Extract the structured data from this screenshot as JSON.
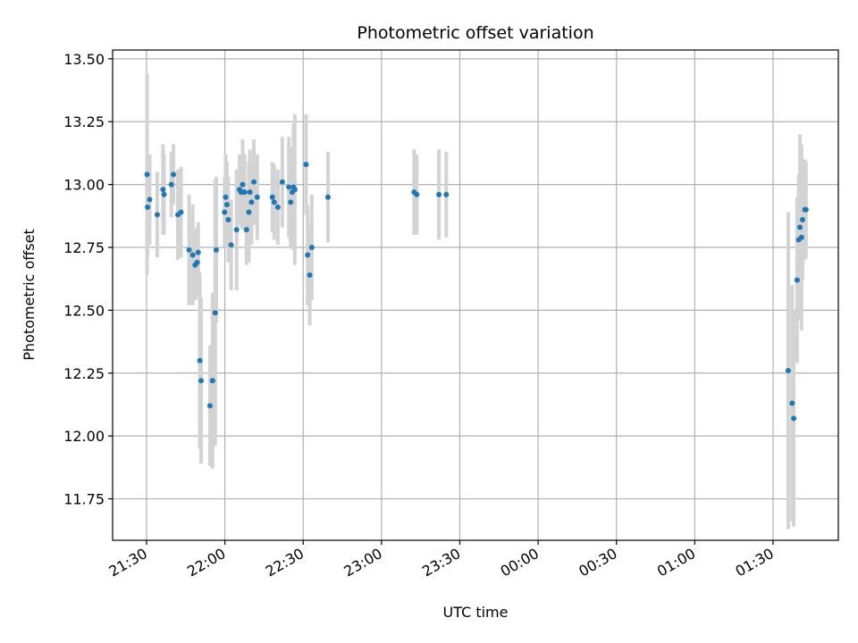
{
  "chart_data": {
    "type": "scatter",
    "title": "Photometric offset variation",
    "xlabel": "UTC time",
    "ylabel": "Photometric offset",
    "x_axis_type": "time",
    "x_start": "21:30",
    "x_tick_labels": [
      "21:30",
      "22:00",
      "22:30",
      "23:00",
      "23:30",
      "00:00",
      "00:30",
      "01:00",
      "01:30"
    ],
    "y_tick_labels": [
      "11.75",
      "12.00",
      "12.25",
      "12.50",
      "12.75",
      "13.00",
      "13.25",
      "13.50"
    ],
    "xlim_minutes_after_start": [
      -13,
      265
    ],
    "ylim": [
      11.585,
      13.535
    ],
    "grid": true,
    "legend": "none",
    "colors": {
      "point": "#1f77b4",
      "errorbar": "#d3d3d3",
      "grid": "#b0b0b0"
    },
    "series": [
      {
        "x_minutes_after_start": [
          0.2,
          0.4,
          1.2,
          4.1,
          6.3,
          6.7,
          9.5,
          10.3,
          12.0,
          13.2,
          16.3,
          17.7,
          18.6,
          19.4,
          19.8,
          20.4,
          20.9,
          24.3,
          25.3,
          26.3,
          26.7,
          29.9,
          30.3,
          30.8,
          31.3,
          32.4,
          34.5,
          35.6,
          36.2,
          36.8,
          37.2,
          37.6,
          38.3,
          39.2,
          39.6,
          40.2,
          41.1,
          42.4,
          48.2,
          48.9,
          50.3,
          52.0,
          54.5,
          55.2,
          55.8,
          56.3,
          56.8,
          61.1,
          61.7,
          62.5,
          63.3,
          69.5,
          102.5,
          103.5,
          112.0,
          114.8,
          245.8,
          247.3,
          247.9,
          249.2,
          249.8,
          250.3,
          250.9,
          251.3,
          252.2,
          252.6
        ],
        "y": [
          13.04,
          12.91,
          12.94,
          12.88,
          12.98,
          12.96,
          13.0,
          13.04,
          12.88,
          12.89,
          12.74,
          12.72,
          12.68,
          12.69,
          12.73,
          12.3,
          12.22,
          12.12,
          12.22,
          12.49,
          12.74,
          12.89,
          12.95,
          12.92,
          12.86,
          12.76,
          12.82,
          12.98,
          12.97,
          13.0,
          12.97,
          12.97,
          12.82,
          12.89,
          12.97,
          12.93,
          13.01,
          12.95,
          12.95,
          12.93,
          12.91,
          13.01,
          12.99,
          12.93,
          12.97,
          12.99,
          12.98,
          13.08,
          12.72,
          12.64,
          12.75,
          12.95,
          12.97,
          12.96,
          12.96,
          12.96,
          12.26,
          12.13,
          12.07,
          12.62,
          12.78,
          12.83,
          12.79,
          12.86,
          12.9,
          12.9
        ],
        "error": [
          0.4,
          0.2,
          0.18,
          0.17,
          0.18,
          0.16,
          0.13,
          0.12,
          0.18,
          0.18,
          0.22,
          0.2,
          0.14,
          0.14,
          0.12,
          0.35,
          0.33,
          0.24,
          0.35,
          0.53,
          0.29,
          0.14,
          0.17,
          0.17,
          0.17,
          0.18,
          0.24,
          0.14,
          0.14,
          0.18,
          0.14,
          0.15,
          0.14,
          0.2,
          0.17,
          0.17,
          0.17,
          0.17,
          0.14,
          0.15,
          0.15,
          0.18,
          0.2,
          0.18,
          0.18,
          0.25,
          0.3,
          0.2,
          0.2,
          0.2,
          0.21,
          0.18,
          0.17,
          0.16,
          0.18,
          0.17,
          0.63,
          0.47,
          0.43,
          0.33,
          0.26,
          0.37,
          0.37,
          0.24,
          0.2,
          0.19
        ]
      }
    ]
  }
}
